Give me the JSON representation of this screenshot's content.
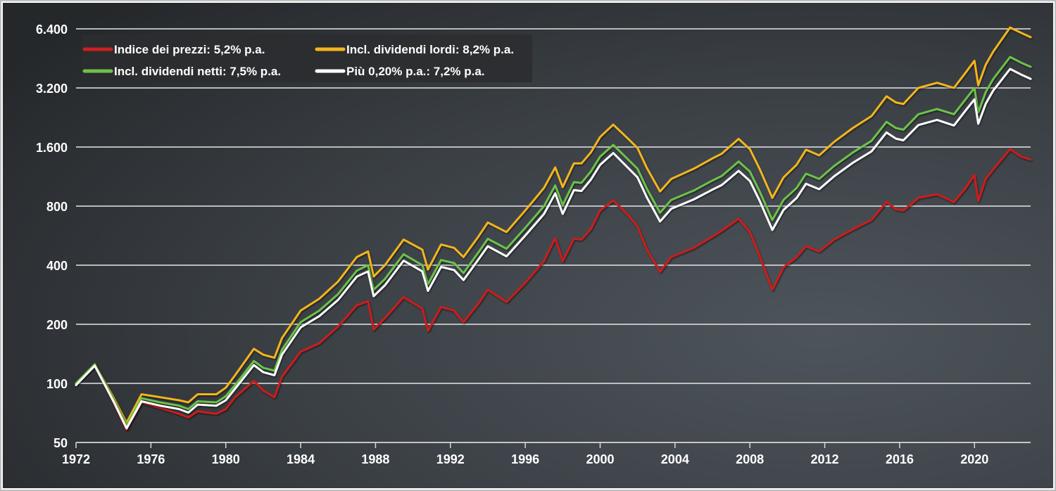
{
  "chart_data": {
    "type": "line",
    "title": "",
    "xlabel": "",
    "ylabel": "",
    "y_scale": "log",
    "ylim": [
      50,
      6400
    ],
    "xlim": [
      1972,
      2023
    ],
    "y_ticks": [
      {
        "value": 50,
        "label": "50"
      },
      {
        "value": 100,
        "label": "100"
      },
      {
        "value": 200,
        "label": "200"
      },
      {
        "value": 400,
        "label": "400"
      },
      {
        "value": 800,
        "label": "800"
      },
      {
        "value": 1600,
        "label": "1.600"
      },
      {
        "value": 3200,
        "label": "3.200"
      },
      {
        "value": 6400,
        "label": "6.400"
      }
    ],
    "x_ticks": [
      {
        "value": 1972,
        "label": "1972"
      },
      {
        "value": 1976,
        "label": "1976"
      },
      {
        "value": 1980,
        "label": "1980"
      },
      {
        "value": 1984,
        "label": "1984"
      },
      {
        "value": 1988,
        "label": "1988"
      },
      {
        "value": 1992,
        "label": "1992"
      },
      {
        "value": 1996,
        "label": "1996"
      },
      {
        "value": 2000,
        "label": "2000"
      },
      {
        "value": 2004,
        "label": "2004"
      },
      {
        "value": 2008,
        "label": "2008"
      },
      {
        "value": 2012,
        "label": "2012"
      },
      {
        "value": 2016,
        "label": "2016"
      },
      {
        "value": 2020,
        "label": "2020"
      }
    ],
    "grid": true,
    "legend_position": "top-left",
    "colors": {
      "background_top": "#2a2d30",
      "background_mid": "#4b5258",
      "grid": "#e6e6e6",
      "legend_bg": "#2b2d2f"
    },
    "x": [
      1972.0,
      1973.0,
      1974.0,
      1974.7,
      1975.5,
      1976.5,
      1977.5,
      1978.0,
      1978.5,
      1979.5,
      1980.0,
      1980.5,
      1981.5,
      1982.0,
      1982.6,
      1983.0,
      1984.0,
      1985.0,
      1986.0,
      1987.0,
      1987.6,
      1987.9,
      1988.5,
      1989.5,
      1990.5,
      1990.8,
      1991.5,
      1992.2,
      1992.7,
      1993.5,
      1994.0,
      1995.0,
      1996.0,
      1997.0,
      1997.6,
      1998.0,
      1998.6,
      1999.0,
      1999.5,
      2000.0,
      2000.7,
      2001.5,
      2002.0,
      2002.5,
      2003.2,
      2003.8,
      2005.0,
      2006.0,
      2006.5,
      2007.4,
      2008.0,
      2008.5,
      2009.2,
      2009.8,
      2010.5,
      2011.0,
      2011.7,
      2012.5,
      2013.5,
      2014.5,
      2015.3,
      2015.8,
      2016.2,
      2017.0,
      2018.0,
      2018.9,
      2019.5,
      2020.0,
      2020.2,
      2020.6,
      2021.0,
      2021.9,
      2022.5,
      2023.0
    ],
    "series": [
      {
        "name": "Indice dei prezzi: 5,2% p.a.",
        "color": "#cc1f1f",
        "values": [
          100,
          125,
          80,
          58,
          80,
          75,
          70,
          67,
          72,
          70,
          74,
          85,
          103,
          92,
          85,
          108,
          145,
          160,
          195,
          250,
          262,
          188,
          215,
          275,
          240,
          185,
          245,
          235,
          205,
          255,
          300,
          260,
          325,
          420,
          550,
          420,
          545,
          540,
          610,
          760,
          855,
          720,
          630,
          480,
          370,
          440,
          490,
          560,
          600,
          690,
          590,
          450,
          300,
          390,
          440,
          500,
          470,
          540,
          610,
          680,
          840,
          770,
          760,
          880,
          920,
          840,
          980,
          1150,
          850,
          1100,
          1230,
          1560,
          1430,
          1380
        ]
      },
      {
        "name": "Incl. dividendi lordi: 8,2% p.a.",
        "color": "#f2b51e",
        "values": [
          100,
          125,
          85,
          63,
          88,
          85,
          82,
          80,
          88,
          88,
          95,
          110,
          150,
          140,
          135,
          170,
          235,
          270,
          330,
          440,
          470,
          350,
          400,
          540,
          480,
          380,
          510,
          490,
          440,
          560,
          660,
          590,
          760,
          990,
          1260,
          1000,
          1320,
          1320,
          1500,
          1800,
          2080,
          1760,
          1580,
          1250,
          950,
          1100,
          1240,
          1400,
          1480,
          1760,
          1560,
          1250,
          880,
          1120,
          1300,
          1550,
          1450,
          1700,
          2000,
          2300,
          2900,
          2700,
          2650,
          3200,
          3400,
          3200,
          3800,
          4400,
          3300,
          4200,
          4900,
          6500,
          6100,
          5800
        ]
      },
      {
        "name": "Incl. dividendi netti: 7,5% p.a.",
        "color": "#6cc24a",
        "values": [
          100,
          125,
          83,
          61,
          84,
          80,
          77,
          74,
          81,
          80,
          86,
          98,
          130,
          120,
          116,
          148,
          205,
          235,
          285,
          375,
          400,
          300,
          340,
          455,
          400,
          320,
          425,
          410,
          365,
          465,
          545,
          485,
          620,
          800,
          1020,
          810,
          1060,
          1050,
          1200,
          1430,
          1640,
          1380,
          1240,
          980,
          740,
          860,
          960,
          1080,
          1140,
          1350,
          1200,
          960,
          680,
          860,
          990,
          1170,
          1100,
          1280,
          1500,
          1720,
          2150,
          2000,
          1960,
          2350,
          2500,
          2350,
          2780,
          3200,
          2400,
          3050,
          3550,
          4600,
          4300,
          4100
        ]
      },
      {
        "name": "Più 0,20% p.a.: 7,2% p.a.",
        "color": "#ffffff",
        "values": [
          98,
          123,
          81,
          59,
          81,
          77,
          74,
          71,
          78,
          77,
          82,
          94,
          124,
          114,
          110,
          140,
          193,
          220,
          266,
          350,
          372,
          278,
          316,
          422,
          372,
          296,
          392,
          378,
          336,
          428,
          500,
          444,
          566,
          730,
          930,
          730,
          965,
          955,
          1090,
          1300,
          1490,
          1250,
          1120,
          885,
          668,
          775,
          865,
          970,
          1025,
          1210,
          1075,
          860,
          605,
          765,
          880,
          1040,
          975,
          1135,
          1330,
          1520,
          1900,
          1765,
          1730,
          2070,
          2200,
          2060,
          2440,
          2800,
          2100,
          2660,
          3100,
          4000,
          3740,
          3560
        ]
      }
    ]
  }
}
